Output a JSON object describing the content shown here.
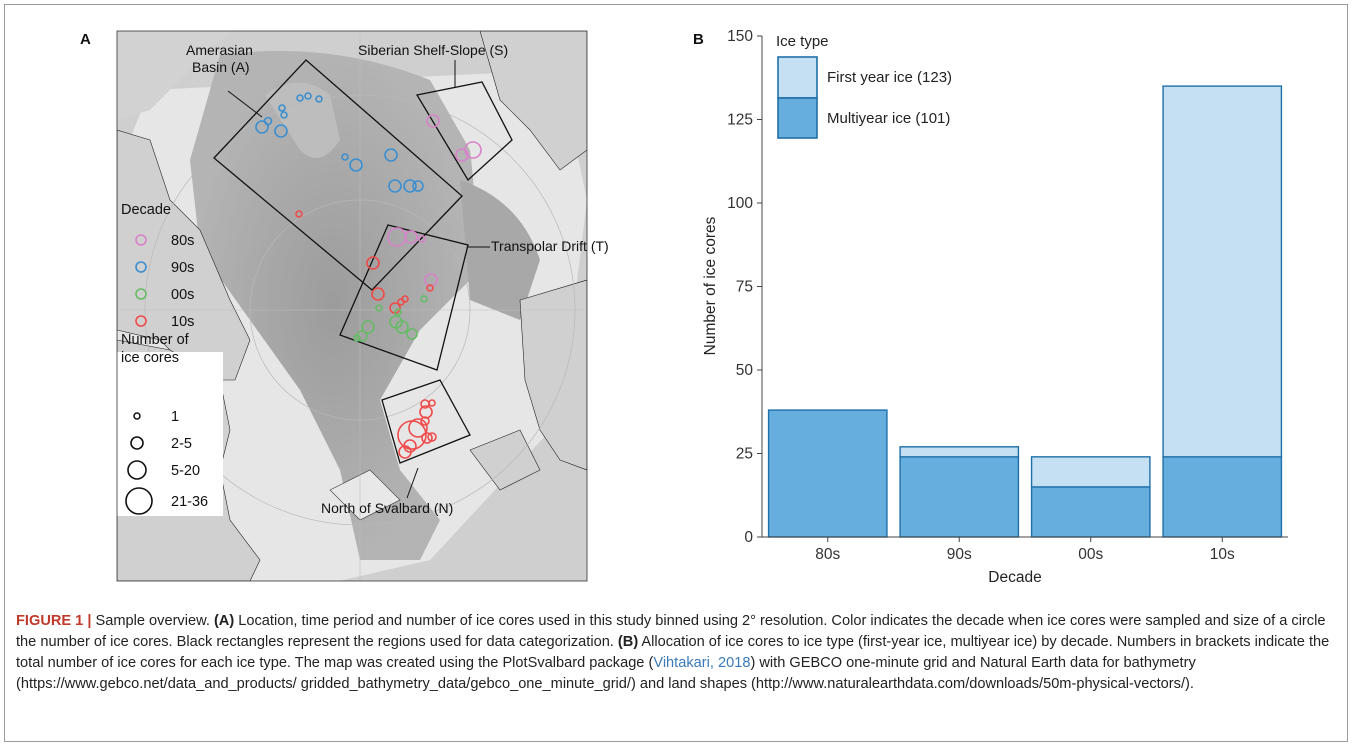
{
  "map_panel": {
    "panel_label": "A",
    "regions": [
      {
        "id": "A",
        "label_line1": "Amerasian",
        "label_line2": "Basin (A)"
      },
      {
        "id": "S",
        "label": "Siberian Shelf-Slope (S)"
      },
      {
        "id": "T",
        "label": "Transpolar Drift (T)"
      },
      {
        "id": "N",
        "label": "North of Svalbard (N)"
      }
    ],
    "decade_legend": {
      "title": "Decade",
      "items": [
        {
          "label": "80s",
          "color": "#d883c8"
        },
        {
          "label": "90s",
          "color": "#3b8fd0"
        },
        {
          "label": "00s",
          "color": "#66bb66"
        },
        {
          "label": "10s",
          "color": "#f04a4a"
        }
      ]
    },
    "size_legend": {
      "title_line1": "Number of",
      "title_line2": "ice cores",
      "items": [
        "1",
        "2-5",
        "5-20",
        "21-36"
      ]
    }
  },
  "chart_data": {
    "type": "bar",
    "stacked": true,
    "panel_label": "B",
    "categories": [
      "80s",
      "90s",
      "00s",
      "10s"
    ],
    "series": [
      {
        "name": "Multiyear ice (101)",
        "values": [
          38,
          24,
          15,
          24
        ],
        "color": "#66aede"
      },
      {
        "name": "First year ice (123)",
        "values": [
          0,
          3,
          9,
          111
        ],
        "color": "#c4e0f2"
      }
    ],
    "xlabel": "Decade",
    "ylabel": "Number of ice cores",
    "ylim": [
      0,
      150
    ],
    "yticks": [
      0,
      25,
      50,
      75,
      100,
      125,
      150
    ],
    "legend_title": "Ice type",
    "legend_placement": "top-left",
    "grid": false
  },
  "caption": {
    "figure_label": "FIGURE 1 |",
    "title": " Sample overview. ",
    "part_a_label": "(A)",
    "part_a_text": " Location, time period and number of ice cores used in this study binned using 2° resolution. Color indicates the decade when ice cores were sampled and size of a circle the number of ice cores. Black rectangles represent the regions used for data categorization. ",
    "part_b_label": "(B)",
    "part_b_text": " Allocation of ice cores to ice type (first-year ice, multiyear ice) by decade. Numbers in brackets indicate the total number of ice cores for each ice type. The map was created using the PlotSvalbard package (",
    "citation": "Vihtakari, 2018",
    "tail_text": ") with GEBCO one-minute grid and Natural Earth data for bathymetry (https://www.gebco.net/data_and_products/ gridded_bathymetry_data/gebco_one_minute_grid/) and land shapes (http://www.naturalearthdata.com/downloads/50m-physical-vectors/)."
  }
}
